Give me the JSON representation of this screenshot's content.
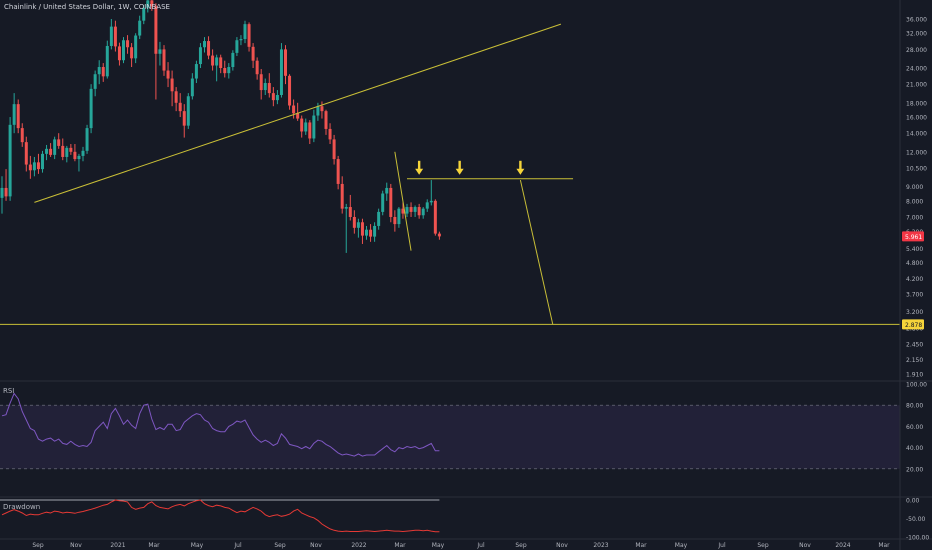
{
  "chart_title": "Chainlink / United States Dollar, 1W, COINBASE",
  "price_tag": "5.961",
  "level_tag": "2.878",
  "colors": {
    "background": "#161a25",
    "up": "#26a69a",
    "down": "#ef5350",
    "trendline": "#c9bf37",
    "arrow": "#f5d43a",
    "rsi_line": "#7e57c2",
    "drawdown_line": "#e53935",
    "tag_red": "#f23645",
    "tag_yellow": "#f5d43a",
    "axis_text": "#b2b5be"
  },
  "chart_data": [
    {
      "type": "candlestick",
      "title": "Chainlink / United States Dollar, 1W, COINBASE",
      "scale": "log",
      "y_ticks": [
        "36.000",
        "32.000",
        "28.000",
        "24.000",
        "21.000",
        "18.000",
        "16.000",
        "14.000",
        "12.000",
        "10.500",
        "9.000",
        "8.000",
        "7.000",
        "6.200",
        "5.400",
        "4.800",
        "4.200",
        "3.700",
        "3.200",
        "2.800",
        "2.450",
        "2.150",
        "1.910"
      ],
      "x_ticks": [
        "Sep",
        "Nov",
        "2021",
        "Mar",
        "May",
        "Jul",
        "Sep",
        "Nov",
        "2022",
        "Mar",
        "May",
        "Jul",
        "Sep",
        "Nov",
        "2023",
        "Mar",
        "May",
        "Jul",
        "Sep",
        "Nov",
        "2024",
        "Mar"
      ],
      "candles": [
        {
          "o": 8.2,
          "h": 9.8,
          "l": 7.2,
          "c": 8.9
        },
        {
          "o": 8.9,
          "h": 10.4,
          "l": 8.0,
          "c": 8.3
        },
        {
          "o": 8.3,
          "h": 16.0,
          "l": 8.0,
          "c": 15.0
        },
        {
          "o": 15.0,
          "h": 19.5,
          "l": 14.0,
          "c": 17.8
        },
        {
          "o": 17.8,
          "h": 18.5,
          "l": 14.0,
          "c": 14.6
        },
        {
          "o": 14.6,
          "h": 15.2,
          "l": 12.5,
          "c": 13.0
        },
        {
          "o": 13.0,
          "h": 13.6,
          "l": 10.2,
          "c": 10.8
        },
        {
          "o": 10.8,
          "h": 11.6,
          "l": 9.6,
          "c": 10.3
        },
        {
          "o": 10.3,
          "h": 11.5,
          "l": 9.8,
          "c": 11.0
        },
        {
          "o": 11.0,
          "h": 11.8,
          "l": 10.0,
          "c": 10.4
        },
        {
          "o": 10.4,
          "h": 12.1,
          "l": 10.1,
          "c": 11.8
        },
        {
          "o": 11.8,
          "h": 12.7,
          "l": 11.2,
          "c": 12.3
        },
        {
          "o": 12.3,
          "h": 12.9,
          "l": 11.5,
          "c": 11.7
        },
        {
          "o": 11.7,
          "h": 13.6,
          "l": 11.3,
          "c": 13.3
        },
        {
          "o": 13.3,
          "h": 14.0,
          "l": 12.3,
          "c": 12.6
        },
        {
          "o": 12.6,
          "h": 13.4,
          "l": 11.2,
          "c": 11.5
        },
        {
          "o": 11.5,
          "h": 12.6,
          "l": 11.0,
          "c": 12.4
        },
        {
          "o": 12.4,
          "h": 12.8,
          "l": 11.7,
          "c": 12.0
        },
        {
          "o": 12.0,
          "h": 12.8,
          "l": 11.1,
          "c": 11.3
        },
        {
          "o": 11.3,
          "h": 11.8,
          "l": 10.2,
          "c": 11.6
        },
        {
          "o": 11.6,
          "h": 12.5,
          "l": 11.1,
          "c": 12.1
        },
        {
          "o": 12.1,
          "h": 15.0,
          "l": 11.8,
          "c": 14.6
        },
        {
          "o": 14.6,
          "h": 21.0,
          "l": 14.0,
          "c": 20.2
        },
        {
          "o": 20.2,
          "h": 23.5,
          "l": 19.0,
          "c": 22.8
        },
        {
          "o": 22.8,
          "h": 25.6,
          "l": 21.0,
          "c": 24.2
        },
        {
          "o": 24.2,
          "h": 25.0,
          "l": 21.4,
          "c": 22.4
        },
        {
          "o": 22.4,
          "h": 30.1,
          "l": 22.0,
          "c": 28.8
        },
        {
          "o": 28.8,
          "h": 36.0,
          "l": 28.0,
          "c": 33.8
        },
        {
          "o": 33.8,
          "h": 35.5,
          "l": 27.5,
          "c": 28.7
        },
        {
          "o": 28.7,
          "h": 29.6,
          "l": 24.5,
          "c": 25.6
        },
        {
          "o": 25.6,
          "h": 31.0,
          "l": 25.0,
          "c": 30.2
        },
        {
          "o": 30.2,
          "h": 31.5,
          "l": 27.0,
          "c": 28.5
        },
        {
          "o": 28.5,
          "h": 29.5,
          "l": 24.2,
          "c": 26.0
        },
        {
          "o": 26.0,
          "h": 32.0,
          "l": 25.0,
          "c": 31.4
        },
        {
          "o": 31.4,
          "h": 37.0,
          "l": 30.5,
          "c": 35.5
        },
        {
          "o": 35.5,
          "h": 40.5,
          "l": 34.5,
          "c": 39.5
        },
        {
          "o": 39.5,
          "h": 43.0,
          "l": 38.0,
          "c": 42.0
        },
        {
          "o": 42.0,
          "h": 44.0,
          "l": 38.5,
          "c": 40.0
        },
        {
          "o": 40.0,
          "h": 41.0,
          "l": 18.5,
          "c": 27.0
        },
        {
          "o": 27.0,
          "h": 29.8,
          "l": 24.5,
          "c": 28.0
        },
        {
          "o": 28.0,
          "h": 29.0,
          "l": 22.5,
          "c": 23.5
        },
        {
          "o": 23.5,
          "h": 25.2,
          "l": 20.5,
          "c": 22.0
        },
        {
          "o": 22.0,
          "h": 23.5,
          "l": 17.5,
          "c": 19.8
        },
        {
          "o": 19.8,
          "h": 20.5,
          "l": 16.8,
          "c": 18.0
        },
        {
          "o": 18.0,
          "h": 19.5,
          "l": 16.0,
          "c": 16.8
        },
        {
          "o": 16.8,
          "h": 17.8,
          "l": 13.5,
          "c": 14.9
        },
        {
          "o": 14.9,
          "h": 19.5,
          "l": 14.5,
          "c": 19.0
        },
        {
          "o": 19.0,
          "h": 23.0,
          "l": 18.5,
          "c": 22.0
        },
        {
          "o": 22.0,
          "h": 25.5,
          "l": 21.2,
          "c": 24.8
        },
        {
          "o": 24.8,
          "h": 29.5,
          "l": 24.0,
          "c": 28.5
        },
        {
          "o": 28.5,
          "h": 31.0,
          "l": 27.3,
          "c": 30.0
        },
        {
          "o": 30.0,
          "h": 31.2,
          "l": 25.8,
          "c": 26.6
        },
        {
          "o": 26.6,
          "h": 28.0,
          "l": 23.5,
          "c": 24.5
        },
        {
          "o": 24.5,
          "h": 26.8,
          "l": 21.5,
          "c": 26.2
        },
        {
          "o": 26.2,
          "h": 26.8,
          "l": 23.0,
          "c": 24.0
        },
        {
          "o": 24.0,
          "h": 25.5,
          "l": 22.2,
          "c": 23.0
        },
        {
          "o": 23.0,
          "h": 25.0,
          "l": 22.0,
          "c": 24.2
        },
        {
          "o": 24.2,
          "h": 27.8,
          "l": 23.5,
          "c": 27.2
        },
        {
          "o": 27.2,
          "h": 31.0,
          "l": 26.5,
          "c": 30.2
        },
        {
          "o": 30.2,
          "h": 31.5,
          "l": 29.0,
          "c": 30.5
        },
        {
          "o": 30.5,
          "h": 35.5,
          "l": 29.5,
          "c": 34.5
        },
        {
          "o": 34.5,
          "h": 35.0,
          "l": 27.5,
          "c": 28.6
        },
        {
          "o": 28.6,
          "h": 29.5,
          "l": 24.0,
          "c": 25.5
        },
        {
          "o": 25.5,
          "h": 26.2,
          "l": 21.8,
          "c": 22.8
        },
        {
          "o": 22.8,
          "h": 23.8,
          "l": 18.5,
          "c": 20.0
        },
        {
          "o": 20.0,
          "h": 22.0,
          "l": 19.2,
          "c": 21.2
        },
        {
          "o": 21.2,
          "h": 23.0,
          "l": 18.8,
          "c": 19.5
        },
        {
          "o": 19.5,
          "h": 20.5,
          "l": 17.5,
          "c": 18.4
        },
        {
          "o": 18.4,
          "h": 20.0,
          "l": 17.8,
          "c": 19.2
        },
        {
          "o": 19.2,
          "h": 29.5,
          "l": 18.8,
          "c": 28.0
        },
        {
          "o": 28.0,
          "h": 29.0,
          "l": 21.0,
          "c": 22.5
        },
        {
          "o": 22.5,
          "h": 22.8,
          "l": 17.0,
          "c": 17.6
        },
        {
          "o": 17.6,
          "h": 18.5,
          "l": 15.8,
          "c": 16.5
        },
        {
          "o": 16.5,
          "h": 18.0,
          "l": 15.5,
          "c": 15.8
        },
        {
          "o": 15.8,
          "h": 16.2,
          "l": 13.5,
          "c": 14.2
        },
        {
          "o": 14.2,
          "h": 15.8,
          "l": 13.8,
          "c": 15.3
        },
        {
          "o": 15.3,
          "h": 15.6,
          "l": 12.8,
          "c": 13.4
        },
        {
          "o": 13.4,
          "h": 17.0,
          "l": 13.0,
          "c": 16.2
        },
        {
          "o": 16.2,
          "h": 18.0,
          "l": 15.5,
          "c": 17.5
        },
        {
          "o": 17.5,
          "h": 18.2,
          "l": 15.8,
          "c": 16.8
        },
        {
          "o": 16.8,
          "h": 17.0,
          "l": 13.8,
          "c": 14.5
        },
        {
          "o": 14.5,
          "h": 15.2,
          "l": 12.8,
          "c": 13.3
        },
        {
          "o": 13.3,
          "h": 13.8,
          "l": 10.8,
          "c": 11.3
        },
        {
          "o": 11.3,
          "h": 11.6,
          "l": 8.8,
          "c": 9.2
        },
        {
          "o": 9.2,
          "h": 9.8,
          "l": 7.2,
          "c": 7.5
        },
        {
          "o": 7.5,
          "h": 7.8,
          "l": 5.2,
          "c": 7.6
        },
        {
          "o": 7.6,
          "h": 8.4,
          "l": 6.8,
          "c": 7.0
        },
        {
          "o": 7.0,
          "h": 7.4,
          "l": 6.1,
          "c": 6.4
        },
        {
          "o": 6.4,
          "h": 6.9,
          "l": 5.9,
          "c": 6.7
        },
        {
          "o": 6.7,
          "h": 6.9,
          "l": 5.6,
          "c": 6.0
        },
        {
          "o": 6.0,
          "h": 6.5,
          "l": 5.8,
          "c": 6.3
        },
        {
          "o": 6.3,
          "h": 6.6,
          "l": 5.7,
          "c": 5.95
        },
        {
          "o": 5.95,
          "h": 6.7,
          "l": 5.7,
          "c": 6.5
        },
        {
          "o": 6.5,
          "h": 7.5,
          "l": 6.3,
          "c": 7.3
        },
        {
          "o": 7.3,
          "h": 8.7,
          "l": 7.1,
          "c": 8.5
        },
        {
          "o": 8.5,
          "h": 9.3,
          "l": 8.0,
          "c": 8.9
        },
        {
          "o": 8.9,
          "h": 9.2,
          "l": 6.7,
          "c": 7.0
        },
        {
          "o": 7.0,
          "h": 7.4,
          "l": 6.2,
          "c": 6.6
        },
        {
          "o": 6.6,
          "h": 7.6,
          "l": 6.4,
          "c": 7.5
        },
        {
          "o": 7.5,
          "h": 7.9,
          "l": 6.9,
          "c": 7.2
        },
        {
          "o": 7.2,
          "h": 7.8,
          "l": 7.0,
          "c": 7.6
        },
        {
          "o": 7.6,
          "h": 7.9,
          "l": 7.0,
          "c": 7.3
        },
        {
          "o": 7.3,
          "h": 7.7,
          "l": 7.0,
          "c": 7.6
        },
        {
          "o": 7.6,
          "h": 7.8,
          "l": 6.9,
          "c": 7.1
        },
        {
          "o": 7.1,
          "h": 7.6,
          "l": 6.9,
          "c": 7.5
        },
        {
          "o": 7.5,
          "h": 8.1,
          "l": 7.3,
          "c": 7.9
        },
        {
          "o": 7.9,
          "h": 9.5,
          "l": 7.7,
          "c": 8.0
        },
        {
          "o": 8.0,
          "h": 8.1,
          "l": 6.0,
          "c": 6.1
        },
        {
          "o": 6.1,
          "h": 6.2,
          "l": 5.8,
          "c": 5.961
        }
      ],
      "lines": [
        {
          "name": "rising-trendline",
          "from": {
            "bar": 8,
            "price": 7.9
          },
          "to": {
            "bar": 138,
            "price": 34.5
          }
        },
        {
          "name": "range-top-line",
          "from": {
            "bar": 100,
            "price": 9.6
          },
          "to": {
            "bar": 141,
            "price": 9.6
          }
        },
        {
          "name": "drop-line-left",
          "from": {
            "bar": 97,
            "price": 12.0
          },
          "to": {
            "bar": 101,
            "price": 5.3
          }
        },
        {
          "name": "target-line",
          "from": {
            "bar": 128,
            "price": 9.5
          },
          "to": {
            "bar": 136,
            "price": 2.878
          }
        },
        {
          "name": "horizontal-level",
          "price": 2.878
        }
      ],
      "arrows": [
        {
          "bar": 103
        },
        {
          "bar": 113
        },
        {
          "bar": 128
        }
      ],
      "last_price": 5.961,
      "level": 2.878
    },
    {
      "type": "line",
      "title": "RSI",
      "ylim": [
        0,
        100
      ],
      "y_ticks": [
        "100.00",
        "80.00",
        "60.00",
        "40.00",
        "20.00"
      ],
      "band": [
        20,
        80
      ],
      "values": [
        70,
        71,
        82,
        91,
        86,
        74,
        66,
        58,
        56,
        48,
        46,
        48,
        49,
        46,
        48,
        44,
        43,
        46,
        43,
        41,
        42,
        41,
        45,
        56,
        60,
        64,
        58,
        72,
        77,
        70,
        62,
        66,
        61,
        58,
        72,
        80,
        81,
        67,
        57,
        59,
        57,
        62,
        62,
        56,
        57,
        64,
        67,
        70,
        72,
        71,
        66,
        64,
        58,
        56,
        55,
        55,
        60,
        62,
        65,
        64,
        66,
        59,
        52,
        48,
        45,
        47,
        45,
        42,
        44,
        53,
        49,
        43,
        42,
        41,
        39,
        41,
        39,
        44,
        47,
        46,
        43,
        41,
        38,
        35,
        33,
        34,
        33,
        32,
        34,
        32,
        33,
        33,
        33,
        36,
        39,
        42,
        38,
        36,
        40,
        39,
        41,
        40,
        41,
        39,
        40,
        42,
        44,
        37,
        37
      ]
    },
    {
      "type": "line",
      "title": "Drawdown",
      "ylim": [
        -100,
        0
      ],
      "y_ticks": [
        "0.00",
        "-50.00",
        "-100.00"
      ],
      "values": [
        -40,
        -35,
        -30,
        -26,
        -30,
        -35,
        -42,
        -38,
        -40,
        -40,
        -36,
        -33,
        -35,
        -30,
        -32,
        -35,
        -33,
        -34,
        -36,
        -33,
        -31,
        -28,
        -25,
        -22,
        -18,
        -14,
        -12,
        -5,
        0,
        -2,
        -3,
        -5,
        -20,
        -25,
        -22,
        -20,
        -10,
        -5,
        -15,
        -20,
        -22,
        -24,
        -18,
        -14,
        -12,
        -16,
        -10,
        -6,
        -2,
        0,
        -10,
        -15,
        -18,
        -14,
        -16,
        -20,
        -22,
        -28,
        -34,
        -30,
        -32,
        -26,
        -20,
        -24,
        -30,
        -40,
        -45,
        -42,
        -40,
        -44,
        -42,
        -38,
        -30,
        -25,
        -35,
        -40,
        -45,
        -48,
        -55,
        -65,
        -72,
        -78,
        -82,
        -84,
        -85,
        -84,
        -85,
        -85,
        -85,
        -84,
        -83,
        -84,
        -85,
        -84,
        -83,
        -82,
        -83,
        -84,
        -84,
        -85,
        -84,
        -83,
        -82,
        -82,
        -83,
        -82,
        -84,
        -86,
        -86
      ]
    }
  ]
}
